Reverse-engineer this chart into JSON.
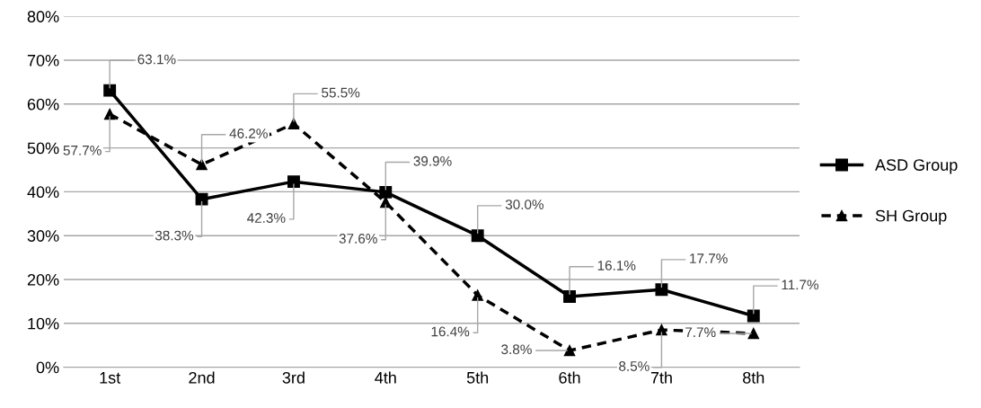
{
  "chart_data": {
    "type": "line",
    "categories": [
      "1st",
      "2nd",
      "3rd",
      "4th",
      "5th",
      "6th",
      "7th",
      "8th"
    ],
    "ylim": [
      0,
      80
    ],
    "yticks": [
      {
        "value": 0,
        "label": "0%"
      },
      {
        "value": 10,
        "label": "10%"
      },
      {
        "value": 20,
        "label": "20%"
      },
      {
        "value": 30,
        "label": "30%"
      },
      {
        "value": 40,
        "label": "40%"
      },
      {
        "value": 50,
        "label": "50%"
      },
      {
        "value": 60,
        "label": "60%"
      },
      {
        "value": 70,
        "label": "70%"
      },
      {
        "value": 80,
        "label": "80%"
      }
    ],
    "grid": "y",
    "legend": "right",
    "series": [
      {
        "name": "ASD Group",
        "color": "#000000",
        "marker": "square",
        "line_style": "solid",
        "values": [
          63.1,
          38.3,
          42.3,
          39.9,
          30.0,
          16.1,
          17.7,
          11.7
        ],
        "value_labels": [
          "63.1%",
          "38.3%",
          "42.3%",
          "39.9%",
          "30.0%",
          "16.1%",
          "17.7%",
          "11.7%"
        ]
      },
      {
        "name": "SH Group",
        "color": "#000000",
        "marker": "triangle",
        "line_style": "dashed",
        "values": [
          57.7,
          46.2,
          55.5,
          37.6,
          16.4,
          3.8,
          8.5,
          7.7
        ],
        "value_labels": [
          "57.7%",
          "46.2%",
          "55.5%",
          "37.6%",
          "16.4%",
          "3.8%",
          "8.5%",
          "7.7%"
        ]
      }
    ]
  }
}
